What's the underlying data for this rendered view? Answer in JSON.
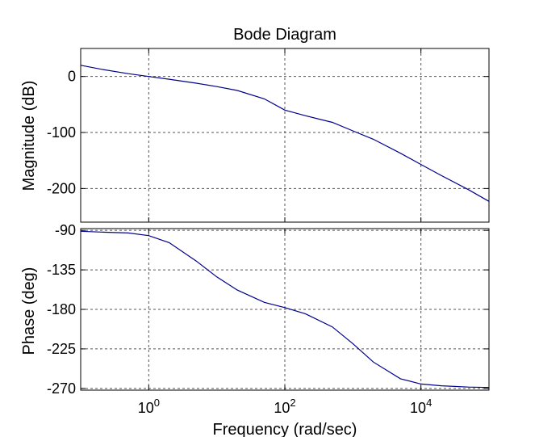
{
  "chart_data": {
    "title": "Bode Diagram",
    "xlabel": "Frequency  (rad/sec)",
    "panels": [
      {
        "type": "line",
        "id": "magnitude",
        "ylabel": "Magnitude (dB)",
        "xscale": "log",
        "xlim": [
          0.1,
          100000
        ],
        "ylim": [
          -260,
          50
        ],
        "yticks": [
          0,
          -100,
          -200
        ],
        "ytick_labels": [
          "0",
          "-100",
          "-200"
        ],
        "xticks": [
          1,
          100,
          10000
        ],
        "grid": true,
        "series": [
          {
            "x": [
              0.1,
              0.2,
              0.5,
              1,
              2,
              5,
              10,
              20,
              50,
              100,
              200,
              500,
              1000,
              2000,
              5000,
              10000,
              20000,
              50000,
              100000
            ],
            "y": [
              20,
              13,
              5,
              0,
              -5,
              -12,
              -18,
              -25,
              -40,
              -60,
              -70,
              -82,
              -97,
              -112,
              -137,
              -157,
              -177,
              -202,
              -223
            ]
          }
        ]
      },
      {
        "type": "line",
        "id": "phase",
        "ylabel": "Phase (deg)",
        "xscale": "log",
        "xlim": [
          0.1,
          100000
        ],
        "ylim": [
          -272,
          -88
        ],
        "yticks": [
          -90,
          -135,
          -180,
          -225,
          -270
        ],
        "ytick_labels": [
          "-90",
          "-135",
          "-180",
          "-225",
          "-270"
        ],
        "xticks": [
          1,
          100,
          10000
        ],
        "grid": true,
        "series": [
          {
            "x": [
              0.1,
              0.2,
              0.5,
              1,
              2,
              5,
              10,
              20,
              50,
              100,
              200,
              500,
              1000,
              2000,
              5000,
              10000,
              20000,
              50000,
              100000
            ],
            "y": [
              -91,
              -92,
              -93,
              -96,
              -104,
              -125,
              -143,
              -158,
              -172,
              -178,
              -185,
              -200,
              -219,
              -240,
              -259,
              -265,
              -267,
              -268.5,
              -269
            ]
          }
        ]
      }
    ],
    "xtick_labels": [
      {
        "base": "10",
        "exp": "0"
      },
      {
        "base": "10",
        "exp": "2"
      },
      {
        "base": "10",
        "exp": "4"
      }
    ]
  }
}
